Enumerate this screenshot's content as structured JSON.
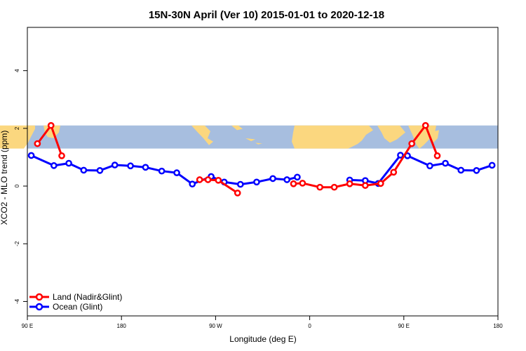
{
  "chart_data": {
    "type": "line",
    "title": "15N-30N April (Ver 10)   2015-01-01 to 2020-12-18",
    "xlabel": "Longitude (deg E)",
    "ylabel": "XCO2 - MLO trend (ppm)",
    "xlim": [
      0,
      360
    ],
    "ylim": [
      -4.5,
      5.5
    ],
    "x_ticks": [
      {
        "value": 0,
        "label": "90 E"
      },
      {
        "value": 72,
        "label": "180"
      },
      {
        "value": 144,
        "label": "90 W"
      },
      {
        "value": 216,
        "label": "0"
      },
      {
        "value": 288,
        "label": "90 E"
      },
      {
        "value": 360,
        "label": "180"
      }
    ],
    "y_ticks": [
      {
        "value": -4,
        "label": "-4"
      },
      {
        "value": -2,
        "label": "-2"
      },
      {
        "value": 0,
        "label": "0"
      },
      {
        "value": 2,
        "label": "2"
      },
      {
        "value": 4,
        "label": "4"
      }
    ],
    "map_band": {
      "y_range": [
        1.3,
        2.1
      ],
      "ocean_color": "#a7bedf",
      "land_color": "#fbd77f"
    },
    "legend_position": "bottom-left",
    "series": [
      {
        "name": "Land (Nadir&Glint)",
        "color": "#ff0000",
        "points": [
          [
            7.7,
            1.47
          ],
          [
            18.1,
            2.1
          ],
          [
            26.3,
            1.05
          ],
          [
            131.8,
            0.22
          ],
          [
            138.2,
            0.22
          ],
          [
            146.1,
            0.2
          ],
          [
            160.8,
            -0.24
          ],
          [
            203.6,
            0.08
          ],
          [
            210.5,
            0.1
          ],
          [
            223.8,
            -0.04
          ],
          [
            234.8,
            -0.04
          ],
          [
            246.6,
            0.08
          ],
          [
            258.5,
            0.02
          ],
          [
            270.3,
            0.09
          ],
          [
            280.2,
            0.48
          ],
          [
            294.1,
            1.47
          ],
          [
            304.6,
            2.1
          ],
          [
            313.6,
            1.05
          ]
        ]
      },
      {
        "name": "Ocean (Glint)",
        "color": "#0000ff",
        "points": [
          [
            3.0,
            1.06
          ],
          [
            20.3,
            0.71
          ],
          [
            31.7,
            0.79
          ],
          [
            43.1,
            0.55
          ],
          [
            55.5,
            0.54
          ],
          [
            66.9,
            0.73
          ],
          [
            78.9,
            0.7
          ],
          [
            90.4,
            0.65
          ],
          [
            102.8,
            0.52
          ],
          [
            114.3,
            0.46
          ],
          [
            126.2,
            0.07
          ],
          [
            140.6,
            0.33
          ],
          [
            150.6,
            0.14
          ],
          [
            163.0,
            0.06
          ],
          [
            175.4,
            0.14
          ],
          [
            187.8,
            0.26
          ],
          [
            198.6,
            0.22
          ],
          [
            206.5,
            0.31
          ],
          [
            246.6,
            0.21
          ],
          [
            258.5,
            0.19
          ],
          [
            268.4,
            0.09
          ],
          [
            285.4,
            1.07
          ],
          [
            290.8,
            1.05
          ],
          [
            307.9,
            0.7
          ],
          [
            319.8,
            0.79
          ],
          [
            331.7,
            0.55
          ],
          [
            343.6,
            0.54
          ],
          [
            355.5,
            0.72
          ]
        ]
      }
    ]
  }
}
